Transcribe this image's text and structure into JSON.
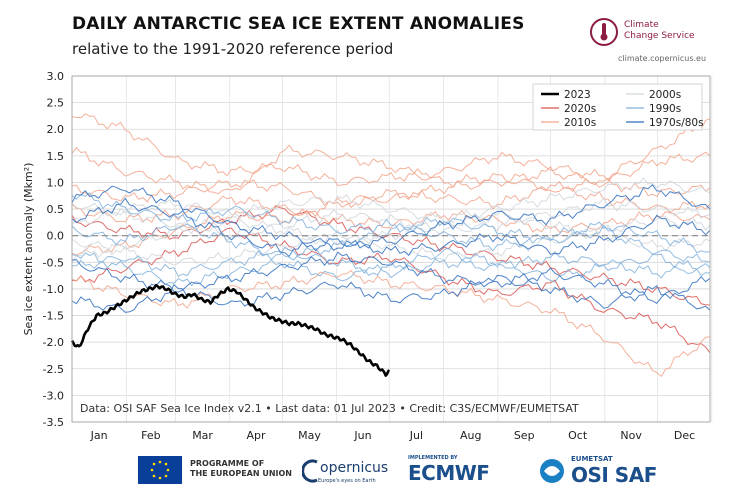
{
  "header": {
    "title": "DAILY ANTARCTIC SEA ICE EXTENT ANOMALIES",
    "subtitle": "relative to the 1991-2020 reference period"
  },
  "brand": {
    "name_line1": "Climate",
    "name_line2": "Change Service",
    "url": "climate.copernicus.eu",
    "color": "#8c1d40"
  },
  "footer": {
    "eu_line1": "PROGRAMME OF",
    "eu_line2": "THE EUROPEAN UNION",
    "copernicus": "opernicus",
    "copernicus_tag": "Europe's eyes on Earth",
    "ecmwf_small": "IMPLEMENTED BY",
    "ecmwf": "ECMWF",
    "osi_small": "EUMETSAT",
    "osi": "OSI SAF"
  },
  "chart_data": {
    "type": "line",
    "title": "DAILY ANTARCTIC SEA ICE EXTENT ANOMALIES",
    "subtitle": "relative to the 1991-2020 reference period",
    "ylabel": "Sea ice extent anomaly (Mkm²)",
    "xlabel": "",
    "ylim": [
      -3.5,
      3.0
    ],
    "yticks": [
      "3.0",
      "2.5",
      "2.0",
      "1.5",
      "1.0",
      "0.5",
      "0.0",
      "-0.5",
      "-1.0",
      "-1.5",
      "-2.0",
      "-2.5",
      "-3.0",
      "-3.5"
    ],
    "ytick_values": [
      3.0,
      2.5,
      2.0,
      1.5,
      1.0,
      0.5,
      0.0,
      -0.5,
      -1.0,
      -1.5,
      -2.0,
      -2.5,
      -3.0,
      -3.5
    ],
    "xlim": [
      1,
      365
    ],
    "months": [
      "Jan",
      "Feb",
      "Mar",
      "Apr",
      "May",
      "Jun",
      "Jul",
      "Aug",
      "Sep",
      "Oct",
      "Nov",
      "Dec"
    ],
    "grid": true,
    "zero_line": "dashed",
    "legend_position": "top-right",
    "legend": [
      {
        "label": "2023",
        "color": "#000000"
      },
      {
        "label": "2000s",
        "color": "#cfd6dc"
      },
      {
        "label": "2020s",
        "color": "#d9534f"
      },
      {
        "label": "1990s",
        "color": "#80b0dc"
      },
      {
        "label": "2010s",
        "color": "#f2a38a"
      },
      {
        "label": "1970s/80s",
        "color": "#2f6fc0"
      }
    ],
    "highlight_series": {
      "name": "2023",
      "color": "#000000",
      "x": [
        1,
        5,
        10,
        15,
        20,
        25,
        30,
        35,
        40,
        45,
        50,
        55,
        60,
        65,
        70,
        75,
        80,
        85,
        90,
        95,
        100,
        105,
        110,
        115,
        120,
        125,
        130,
        135,
        140,
        145,
        150,
        155,
        160,
        165,
        170,
        175,
        180,
        182
      ],
      "values": [
        -2.0,
        -2.1,
        -1.75,
        -1.5,
        -1.45,
        -1.35,
        -1.25,
        -1.15,
        -1.05,
        -1.0,
        -0.95,
        -1.0,
        -1.1,
        -1.15,
        -1.1,
        -1.2,
        -1.25,
        -1.1,
        -1.0,
        -1.05,
        -1.2,
        -1.35,
        -1.45,
        -1.55,
        -1.6,
        -1.65,
        -1.65,
        -1.7,
        -1.75,
        -1.85,
        -1.9,
        -1.95,
        -2.05,
        -2.2,
        -2.35,
        -2.45,
        -2.6,
        -2.55
      ]
    },
    "background_series": [
      {
        "decade": "2020s",
        "color": "#d9534f",
        "values": [
          -0.9,
          -0.6,
          -0.3,
          0.1,
          -0.2,
          -0.5,
          -0.4,
          -0.8,
          -1.1,
          -0.9,
          -1.4,
          -1.6,
          -2.2
        ]
      },
      {
        "decade": "2020s",
        "color": "#d9534f",
        "values": [
          0.3,
          0.1,
          0.0,
          0.3,
          0.5,
          0.2,
          0.0,
          -0.2,
          -0.4,
          -0.6,
          -0.8,
          -1.0,
          -1.3
        ]
      },
      {
        "decade": "2010s",
        "color": "#f2a38a",
        "values": [
          2.3,
          2.0,
          1.4,
          1.2,
          1.3,
          1.0,
          1.1,
          1.2,
          1.5,
          1.3,
          1.1,
          1.6,
          2.2
        ]
      },
      {
        "decade": "2010s",
        "color": "#f2a38a",
        "values": [
          1.6,
          1.2,
          1.0,
          0.8,
          1.6,
          1.5,
          1.3,
          1.0,
          1.1,
          0.9,
          1.0,
          1.4,
          1.5
        ]
      },
      {
        "decade": "2010s",
        "color": "#f2a38a",
        "values": [
          0.9,
          0.7,
          0.8,
          1.0,
          0.9,
          0.6,
          0.7,
          0.9,
          1.0,
          1.2,
          1.0,
          0.8,
          0.9
        ]
      },
      {
        "decade": "2010s",
        "color": "#f2a38a",
        "values": [
          -0.3,
          -0.2,
          0.1,
          0.4,
          0.3,
          0.6,
          0.8,
          0.7,
          0.6,
          0.9,
          0.7,
          0.5,
          0.6
        ]
      },
      {
        "decade": "2010s",
        "color": "#f2a38a",
        "values": [
          -0.8,
          -1.1,
          -1.3,
          -1.0,
          -0.9,
          -0.7,
          -0.9,
          -1.0,
          -1.2,
          -1.4,
          -1.9,
          -2.6,
          -1.9
        ]
      },
      {
        "decade": "2010s",
        "color": "#f2a38a",
        "values": [
          0.5,
          0.3,
          0.4,
          0.7,
          0.5,
          0.3,
          0.2,
          0.4,
          0.3,
          0.1,
          0.2,
          0.4,
          0.3
        ]
      },
      {
        "decade": "2000s",
        "color": "#cfd6dc",
        "values": [
          0.6,
          0.4,
          0.2,
          0.0,
          0.2,
          0.4,
          0.3,
          0.1,
          0.2,
          0.4,
          0.6,
          0.5,
          0.4
        ]
      },
      {
        "decade": "2000s",
        "color": "#cfd6dc",
        "values": [
          -0.4,
          -0.2,
          0.1,
          0.3,
          0.1,
          -0.1,
          0.0,
          0.2,
          0.4,
          0.2,
          0.0,
          -0.2,
          -0.1
        ]
      },
      {
        "decade": "2000s",
        "color": "#cfd6dc",
        "values": [
          0.2,
          0.5,
          0.6,
          0.4,
          0.6,
          0.7,
          0.5,
          0.3,
          0.5,
          0.7,
          0.9,
          1.0,
          0.8
        ]
      },
      {
        "decade": "2000s",
        "color": "#cfd6dc",
        "values": [
          -0.1,
          -0.3,
          -0.5,
          -0.4,
          -0.2,
          0.0,
          -0.2,
          -0.4,
          -0.3,
          -0.1,
          0.1,
          0.3,
          0.2
        ]
      },
      {
        "decade": "1990s",
        "color": "#80b0dc",
        "values": [
          0.8,
          0.5,
          0.3,
          0.5,
          0.3,
          0.1,
          0.2,
          0.0,
          -0.2,
          0.0,
          0.2,
          0.0,
          -0.3
        ]
      },
      {
        "decade": "1990s",
        "color": "#80b0dc",
        "values": [
          -0.6,
          -0.4,
          -0.7,
          -0.5,
          -0.3,
          -0.5,
          -0.7,
          -0.5,
          -0.6,
          -0.4,
          -0.5,
          -0.7,
          -0.6
        ]
      },
      {
        "decade": "1990s",
        "color": "#80b0dc",
        "values": [
          0.1,
          -0.1,
          0.2,
          -0.1,
          -0.4,
          -0.2,
          0.1,
          0.3,
          0.1,
          -0.1,
          0.1,
          -0.3,
          -0.5
        ]
      },
      {
        "decade": "1990s",
        "color": "#80b0dc",
        "values": [
          -0.3,
          -0.6,
          -0.9,
          -0.7,
          -0.5,
          -0.8,
          -0.6,
          -0.3,
          -0.5,
          -0.8,
          -0.6,
          -0.4,
          -0.7
        ]
      },
      {
        "decade": "1970s/80s",
        "color": "#2f6fc0",
        "values": [
          0.7,
          0.9,
          0.6,
          0.2,
          0.0,
          -0.2,
          -0.1,
          0.2,
          0.4,
          0.3,
          0.6,
          0.9,
          0.5
        ]
      },
      {
        "decade": "1970s/80s",
        "color": "#2f6fc0",
        "values": [
          -0.5,
          -0.8,
          -1.0,
          -0.8,
          -0.6,
          -0.4,
          -0.5,
          -0.8,
          -0.9,
          -0.7,
          -0.9,
          -1.2,
          -0.8
        ]
      },
      {
        "decade": "1970s/80s",
        "color": "#2f6fc0",
        "values": [
          0.3,
          0.6,
          0.4,
          0.0,
          -0.3,
          -0.1,
          -0.3,
          -0.2,
          0.0,
          -0.3,
          -0.1,
          0.3,
          0.1
        ]
      },
      {
        "decade": "1970s/80s",
        "color": "#2f6fc0",
        "values": [
          -1.2,
          -1.4,
          -1.0,
          -1.3,
          -1.1,
          -0.9,
          -1.2,
          -1.1,
          -0.8,
          -1.0,
          -1.3,
          -1.0,
          -1.4
        ]
      }
    ],
    "annotation": "Data: OSI SAF Sea Ice Index v2.1 • Last data: 01 Jul 2023 • Credit: C3S/ECMWF/EUMETSAT"
  }
}
